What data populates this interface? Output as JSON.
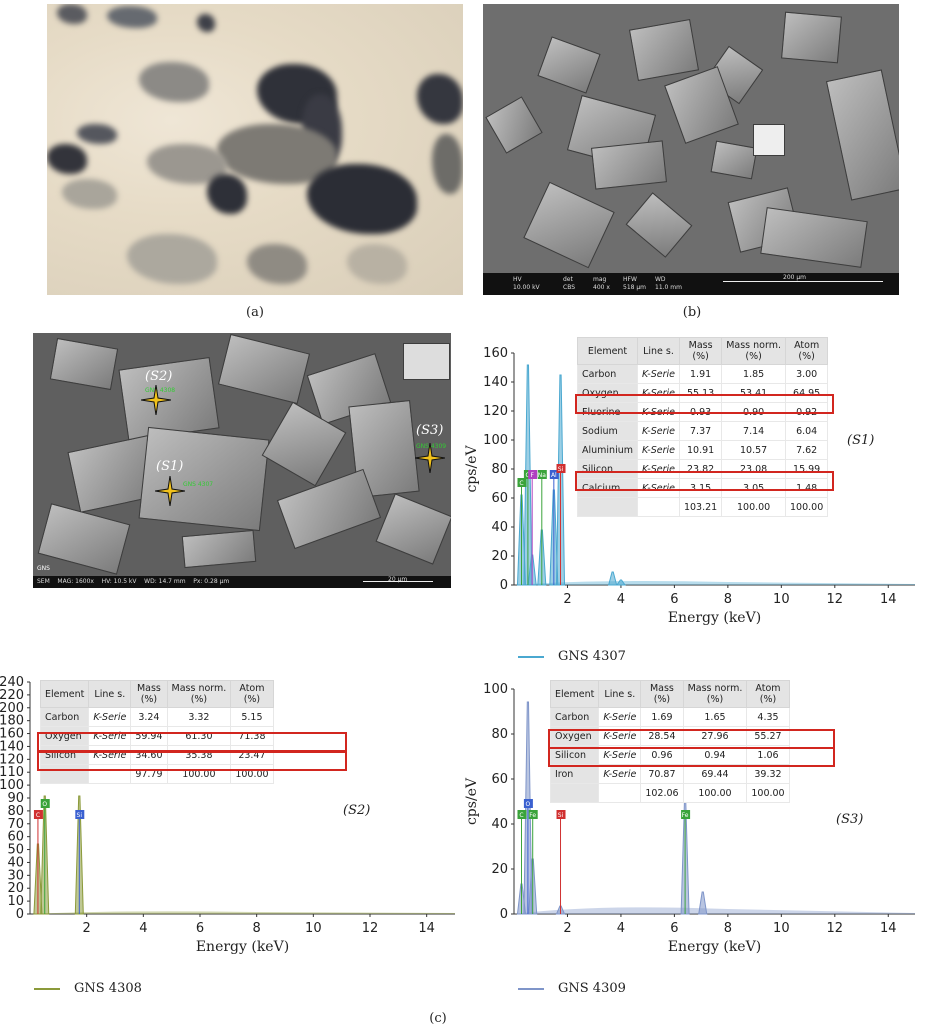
{
  "captions": {
    "a": "(a)",
    "b": "(b)",
    "c": "(c)"
  },
  "sem_b": {
    "hv": "HV",
    "hv_val": "10.00 kV",
    "det": "det",
    "det_val": "CBS",
    "mag": "mag",
    "mag_val": "400 x",
    "hfw": "HFW",
    "hfw_val": "518 μm",
    "wd": "WD",
    "wd_val": "11.0 mm",
    "scale": "200 μm"
  },
  "sem_c": {
    "footer": "SEM    MAG: 1600x    HV: 10.5 kV    WD: 14.7 mm    Px: 0.28 μm",
    "top": "GNS",
    "scale": "20 μm",
    "labels": [
      "(S2)",
      "(S3)",
      "(S1)"
    ],
    "tags": [
      "GNS 4307",
      "GNS 4308",
      "GNS 4309"
    ]
  },
  "spectrum_s1": {
    "point": "(S1)",
    "legend": "GNS 4307",
    "xlabel": "Energy (keV)",
    "ylabel": "cps/eV",
    "yticks": [
      "0",
      "20",
      "40",
      "60",
      "80",
      "100",
      "120",
      "140",
      "160"
    ],
    "xticks": [
      "2",
      "4",
      "6",
      "8",
      "10",
      "12",
      "14"
    ],
    "headers": [
      "Element",
      "Line s.",
      "Mass\n(%)",
      "Mass norm.\n(%)",
      "Atom\n(%)"
    ],
    "rows": [
      [
        "Carbon",
        "K-Serie",
        "1.91",
        "1.85",
        "3.00"
      ],
      [
        "Oxygen",
        "K-Serie",
        "55.13",
        "53.41",
        "64.95"
      ],
      [
        "Fluorine",
        "K-Serie",
        "0.93",
        "0.90",
        "0.92"
      ],
      [
        "Sodium",
        "K-Serie",
        "7.37",
        "7.14",
        "6.04"
      ],
      [
        "Aluminium",
        "K-Serie",
        "10.91",
        "10.57",
        "7.62"
      ],
      [
        "Silicon",
        "K-Serie",
        "23.82",
        "23.08",
        "15.99"
      ],
      [
        "Calcium",
        "K-Serie",
        "3.15",
        "3.05",
        "1.48"
      ],
      [
        "",
        "",
        "103.21",
        "100.00",
        "100.00"
      ]
    ],
    "peak_tags": [
      "C",
      "O",
      "F",
      "Na",
      "Al",
      "Si"
    ]
  },
  "spectrum_s2": {
    "point": "(S2)",
    "legend": "GNS 4308",
    "xlabel": "Energy (keV)",
    "yticks": [
      "0",
      "10",
      "20",
      "30",
      "40",
      "50",
      "60",
      "70",
      "80",
      "90",
      "100",
      "110",
      "120",
      "140",
      "160",
      "180",
      "200",
      "220",
      "240"
    ],
    "xticks": [
      "2",
      "4",
      "6",
      "8",
      "10",
      "12",
      "14"
    ],
    "headers": [
      "Element",
      "Line s.",
      "Mass\n(%)",
      "Mass norm.\n(%)",
      "Atom\n(%)"
    ],
    "rows": [
      [
        "Carbon",
        "K-Serie",
        "3.24",
        "3.32",
        "5.15"
      ],
      [
        "Oxygen",
        "K-Serie",
        "59.94",
        "61.30",
        "71.38"
      ],
      [
        "Silicon",
        "K-Serie",
        "34.60",
        "35.38",
        "23.47"
      ],
      [
        "",
        "",
        "97.79",
        "100.00",
        "100.00"
      ]
    ],
    "peak_tags": [
      "C",
      "O",
      "Si"
    ]
  },
  "spectrum_s3": {
    "point": "(S3)",
    "legend": "GNS 4309",
    "xlabel": "Energy (keV)",
    "ylabel": "cps/eV",
    "yticks": [
      "0",
      "20",
      "40",
      "60",
      "80",
      "100"
    ],
    "xticks": [
      "2",
      "4",
      "6",
      "8",
      "10",
      "12",
      "14"
    ],
    "headers": [
      "Element",
      "Line s.",
      "Mass\n(%)",
      "Mass norm.\n(%)",
      "Atom\n(%)"
    ],
    "rows": [
      [
        "Carbon",
        "K-Serie",
        "1.69",
        "1.65",
        "4.35"
      ],
      [
        "Oxygen",
        "K-Serie",
        "28.54",
        "27.96",
        "55.27"
      ],
      [
        "Silicon",
        "K-Serie",
        "0.96",
        "0.94",
        "1.06"
      ],
      [
        "Iron",
        "K-Serie",
        "70.87",
        "69.44",
        "39.32"
      ],
      [
        "",
        "",
        "102.06",
        "100.00",
        "100.00"
      ]
    ],
    "peak_tags": [
      "C",
      "O",
      "Fe",
      "Si",
      "Fe"
    ]
  },
  "colors": {
    "s1": "#4aa8d0",
    "s2": "#8b9a3a",
    "s3": "#7f95c9",
    "highlight": "#d2261f"
  }
}
